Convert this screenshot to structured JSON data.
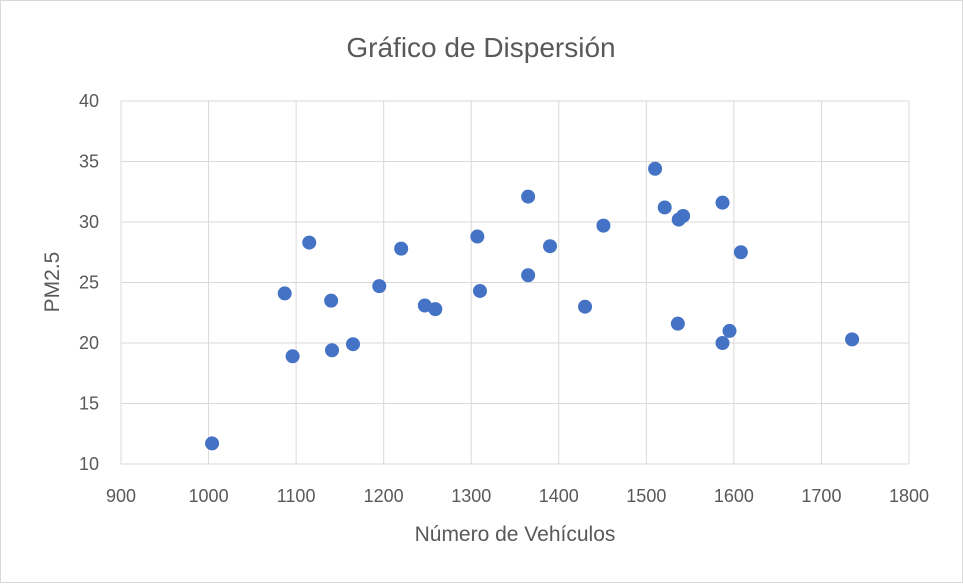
{
  "chart_data": {
    "type": "scatter",
    "title": "Gráfico de Dispersión",
    "xlabel": "Número de Vehículos",
    "ylabel": "PM2.5",
    "xlim": [
      900,
      1800
    ],
    "ylim": [
      10,
      40
    ],
    "x_ticks": [
      "900",
      "1000",
      "1100",
      "1200",
      "1300",
      "1400",
      "1500",
      "1600",
      "1700",
      "1800"
    ],
    "y_ticks": [
      "10",
      "15",
      "20",
      "25",
      "30",
      "35",
      "40"
    ],
    "grid": true,
    "legend": "none",
    "marker_color": "#4472c4",
    "points": [
      {
        "x": 1004,
        "y": 11.7
      },
      {
        "x": 1087,
        "y": 24.1
      },
      {
        "x": 1096,
        "y": 18.9
      },
      {
        "x": 1115,
        "y": 28.3
      },
      {
        "x": 1140,
        "y": 23.5
      },
      {
        "x": 1141,
        "y": 19.4
      },
      {
        "x": 1165,
        "y": 19.9
      },
      {
        "x": 1195,
        "y": 24.7
      },
      {
        "x": 1220,
        "y": 27.8
      },
      {
        "x": 1247,
        "y": 23.1
      },
      {
        "x": 1259,
        "y": 22.8
      },
      {
        "x": 1307,
        "y": 28.8
      },
      {
        "x": 1310,
        "y": 24.3
      },
      {
        "x": 1365,
        "y": 32.1
      },
      {
        "x": 1365,
        "y": 25.6
      },
      {
        "x": 1390,
        "y": 28.0
      },
      {
        "x": 1430,
        "y": 23.0
      },
      {
        "x": 1451,
        "y": 29.7
      },
      {
        "x": 1510,
        "y": 34.4
      },
      {
        "x": 1521,
        "y": 31.2
      },
      {
        "x": 1536,
        "y": 21.6
      },
      {
        "x": 1537,
        "y": 30.2
      },
      {
        "x": 1542,
        "y": 30.5
      },
      {
        "x": 1587,
        "y": 31.6
      },
      {
        "x": 1587,
        "y": 20.0
      },
      {
        "x": 1595,
        "y": 21.0
      },
      {
        "x": 1608,
        "y": 27.5
      },
      {
        "x": 1735,
        "y": 20.3
      }
    ]
  }
}
